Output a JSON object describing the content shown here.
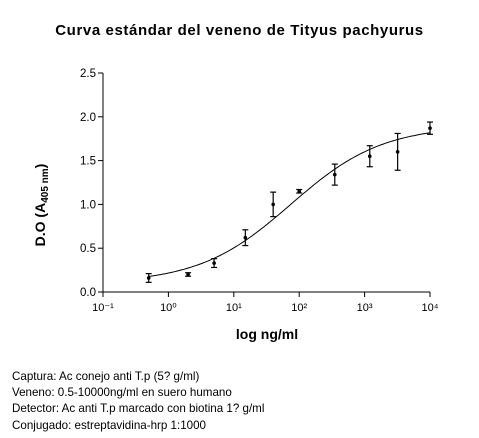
{
  "chart_data": {
    "type": "scatter",
    "title": "Curva estándar del veneno de Tityus pachyurus",
    "xlabel": "log ng/ml",
    "ylabel_main": "D.O (A",
    "ylabel_sub": "405 nm",
    "ylabel_end": ")",
    "x_scale": "log",
    "xlim": [
      0.1,
      10000
    ],
    "ylim": [
      0.0,
      2.5
    ],
    "x_ticks": [
      0.1,
      1,
      10,
      100,
      1000,
      10000
    ],
    "x_tick_labels": [
      "10⁻¹",
      "10⁰",
      "10¹",
      "10²",
      "10³",
      "10⁴"
    ],
    "y_ticks": [
      0.0,
      0.5,
      1.0,
      1.5,
      2.0,
      2.5
    ],
    "y_tick_labels": [
      "0.0",
      "0.5",
      "1.0",
      "1.5",
      "2.0",
      "2.5"
    ],
    "grid": false,
    "points": [
      {
        "x": 0.5,
        "y": 0.16,
        "err": 0.05
      },
      {
        "x": 2,
        "y": 0.2,
        "err": 0.02
      },
      {
        "x": 5,
        "y": 0.33,
        "err": 0.05
      },
      {
        "x": 15,
        "y": 0.62,
        "err": 0.09
      },
      {
        "x": 40,
        "y": 1.0,
        "err": 0.14
      },
      {
        "x": 100,
        "y": 1.15,
        "err": 0.02
      },
      {
        "x": 350,
        "y": 1.34,
        "err": 0.12
      },
      {
        "x": 1200,
        "y": 1.55,
        "err": 0.12
      },
      {
        "x": 3200,
        "y": 1.6,
        "err": 0.21
      },
      {
        "x": 10000,
        "y": 1.87,
        "err": 0.07
      }
    ],
    "fit_curve": {
      "type": "sigmoidal",
      "bottom": 0.1,
      "top": 1.9,
      "log_ec50": 1.87,
      "hill": 0.62
    }
  },
  "notes": [
    "Captura: Ac conejo anti T.p (5? g/ml)",
    "Veneno: 0.5-10000ng/ml en suero humano",
    "Detector: Ac anti T.p marcado con biotina 1? g/ml",
    "Conjugado: estreptavidina-hrp 1:1000"
  ]
}
